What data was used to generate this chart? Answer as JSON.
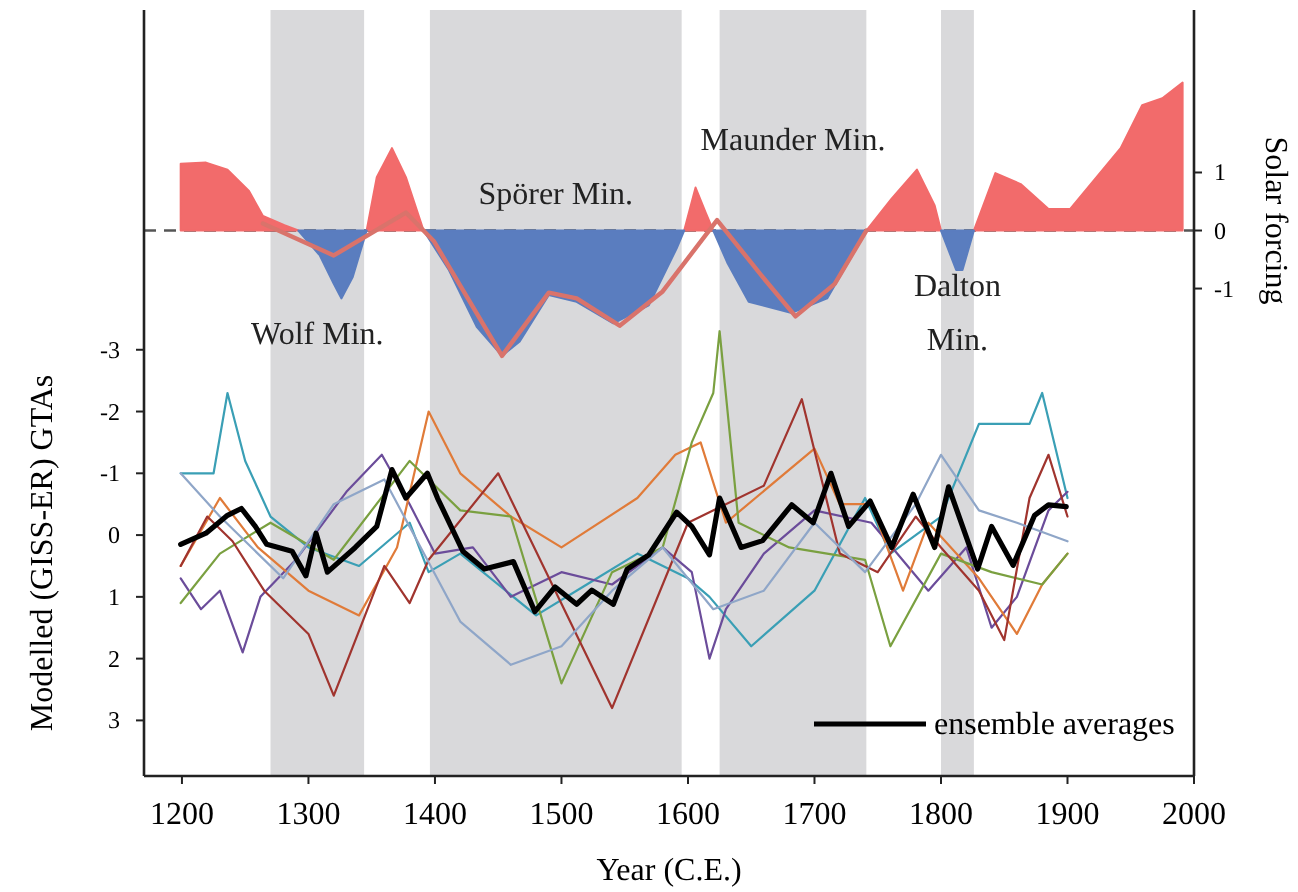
{
  "chart_data": {
    "type": "line",
    "xlabel": "Year (C.E.)",
    "ylabel": "Modelled (GISS-ER) GTAs",
    "y2label": "Solar forcing",
    "xlim": [
      1170,
      2000
    ],
    "xticks": [
      1200,
      1300,
      1400,
      1500,
      1600,
      1700,
      1800,
      1900,
      2000
    ],
    "ylim": [
      3.9,
      -8.5
    ],
    "yticks": [
      {
        "value": -3,
        "label": "-3"
      },
      {
        "value": -2,
        "label": "-2"
      },
      {
        "value": -1,
        "label": "-1"
      },
      0,
      1,
      2,
      3
    ],
    "y2lim": [
      -9.4,
      3.8
    ],
    "y2ticks": [
      {
        "value": -1,
        "label": "-1"
      },
      0,
      1
    ],
    "grid": false,
    "legend": "bottom right",
    "x": [
      1199,
      1219,
      1236,
      1253,
      1264,
      1281,
      1292,
      1309,
      1320,
      1326,
      1335,
      1346,
      1354,
      1366,
      1377,
      1391,
      1411,
      1433,
      1453,
      1467,
      1490,
      1512,
      1541,
      1569,
      1591,
      1597,
      1606,
      1614,
      1620,
      1631,
      1648,
      1682,
      1710,
      1733,
      1741,
      1761,
      1781,
      1795,
      1800,
      1812,
      1817,
      1826,
      1843,
      1863,
      1885,
      1902,
      1942,
      1959,
      1975,
      1991
    ],
    "series": [
      {
        "type": "line",
        "color": "#3a9fb5",
        "x": [
          1199,
          1225,
          1236,
          1250,
          1270,
          1300,
          1340,
          1380,
          1395,
          1420,
          1480,
          1520,
          1560,
          1600,
          1617,
          1650,
          1700,
          1740,
          1760,
          1800,
          1830,
          1870,
          1880,
          1900
        ],
        "values": [
          -1.0,
          -1.0,
          -2.3,
          -1.2,
          -0.3,
          0.2,
          0.5,
          -0.2,
          0.6,
          0.3,
          1.3,
          0.8,
          0.3,
          0.7,
          1.0,
          1.8,
          0.9,
          -0.6,
          0.3,
          -0.3,
          -1.8,
          -1.8,
          -2.3,
          -0.6
        ]
      },
      {
        "type": "line",
        "color": "#6b4c9a",
        "x": [
          1199,
          1215,
          1230,
          1248,
          1262,
          1290,
          1330,
          1358,
          1380,
          1400,
          1430,
          1460,
          1500,
          1540,
          1580,
          1603,
          1617,
          1630,
          1660,
          1700,
          1745,
          1790,
          1820,
          1840,
          1860,
          1885,
          1900
        ],
        "values": [
          0.7,
          1.2,
          0.9,
          1.9,
          1.0,
          0.4,
          -0.7,
          -1.3,
          -0.5,
          0.3,
          0.2,
          1.0,
          0.6,
          0.8,
          0.2,
          0.6,
          2.0,
          1.2,
          0.3,
          -0.4,
          -0.2,
          0.9,
          0.2,
          1.5,
          1.0,
          -0.4,
          -0.7
        ]
      },
      {
        "type": "line",
        "color": "#e07b39",
        "x": [
          1199,
          1230,
          1260,
          1300,
          1340,
          1370,
          1395,
          1420,
          1460,
          1500,
          1560,
          1590,
          1610,
          1630,
          1700,
          1720,
          1745,
          1770,
          1790,
          1830,
          1860,
          1880,
          1900
        ],
        "values": [
          0.5,
          -0.6,
          0.2,
          0.9,
          1.3,
          0.2,
          -2.0,
          -1.0,
          -0.3,
          0.2,
          -0.6,
          -1.3,
          -1.5,
          -0.2,
          -1.4,
          -0.5,
          -0.5,
          0.9,
          -0.2,
          0.7,
          1.6,
          0.8,
          0.3
        ]
      },
      {
        "type": "line",
        "color": "#7aa040",
        "x": [
          1199,
          1230,
          1270,
          1320,
          1380,
          1420,
          1460,
          1500,
          1540,
          1580,
          1603,
          1620,
          1625,
          1640,
          1680,
          1740,
          1760,
          1800,
          1840,
          1880,
          1900
        ],
        "values": [
          1.1,
          0.3,
          -0.2,
          0.4,
          -1.2,
          -0.4,
          -0.3,
          2.4,
          0.6,
          0.2,
          -1.5,
          -2.3,
          -3.3,
          -0.2,
          0.2,
          0.4,
          1.8,
          0.3,
          0.6,
          0.8,
          0.3
        ]
      },
      {
        "type": "line",
        "color": "#a0342e",
        "x": [
          1199,
          1220,
          1240,
          1265,
          1300,
          1320,
          1360,
          1380,
          1395,
          1450,
          1540,
          1600,
          1660,
          1690,
          1720,
          1750,
          1780,
          1800,
          1830,
          1850,
          1870,
          1885,
          1900
        ],
        "values": [
          0.5,
          -0.3,
          0.1,
          0.9,
          1.6,
          2.6,
          0.5,
          1.1,
          0.4,
          -1.0,
          2.8,
          -0.2,
          -0.8,
          -2.2,
          0.3,
          0.6,
          -0.3,
          0.2,
          0.9,
          1.7,
          -0.6,
          -1.3,
          -0.3
        ]
      },
      {
        "type": "line",
        "color": "#8fa6c8",
        "x": [
          1199,
          1230,
          1280,
          1320,
          1360,
          1420,
          1460,
          1500,
          1540,
          1580,
          1620,
          1660,
          1700,
          1740,
          1780,
          1800,
          1830,
          1860,
          1900
        ],
        "values": [
          -1.0,
          -0.3,
          0.7,
          -0.5,
          -0.9,
          1.4,
          2.1,
          1.8,
          0.9,
          0.2,
          1.2,
          0.9,
          -0.2,
          0.6,
          -0.5,
          -1.3,
          -0.4,
          -0.2,
          0.1
        ]
      },
      {
        "type": "line",
        "name": "ensemble averages",
        "color": "#000000",
        "x": [
          1199,
          1219,
          1236,
          1247,
          1258,
          1267,
          1287,
          1298,
          1306,
          1315,
          1337,
          1354,
          1366,
          1377,
          1394,
          1402,
          1422,
          1439,
          1462,
          1479,
          1495,
          1512,
          1524,
          1541,
          1552,
          1569,
          1591,
          1603,
          1617,
          1625,
          1642,
          1659,
          1682,
          1699,
          1713,
          1727,
          1744,
          1761,
          1778,
          1795,
          1806,
          1829,
          1840,
          1857,
          1874,
          1885,
          1899
        ],
        "values": [
          0.15,
          -0.03,
          -0.32,
          -0.43,
          -0.14,
          0.15,
          0.26,
          0.66,
          -0.03,
          0.6,
          0.2,
          -0.14,
          -1.06,
          -0.6,
          -1.0,
          -0.6,
          0.26,
          0.55,
          0.43,
          1.24,
          0.84,
          1.12,
          0.89,
          1.12,
          0.55,
          0.32,
          -0.37,
          -0.14,
          0.32,
          -0.6,
          0.2,
          0.09,
          -0.49,
          -0.2,
          -1.0,
          -0.14,
          -0.55,
          0.2,
          -0.66,
          0.2,
          -0.78,
          0.55,
          -0.14,
          0.49,
          -0.32,
          -0.49,
          -0.46
        ]
      },
      {
        "type": "area",
        "axis": "y2",
        "color": "#f26b6b",
        "values": [
          1.15,
          1.17,
          1.05,
          0.68,
          0.25,
          0.09,
          0,
          null,
          null,
          null,
          null,
          0,
          0.92,
          1.42,
          0.92,
          0,
          null,
          null,
          null,
          null,
          null,
          null,
          null,
          null,
          null,
          0,
          0.74,
          0.31,
          0,
          null,
          null,
          null,
          null,
          null,
          0,
          0.55,
          1.05,
          0.43,
          0,
          null,
          null,
          0,
          0.99,
          0.8,
          0.37,
          0.37,
          1.42,
          2.16,
          2.28,
          2.55
        ]
      },
      {
        "type": "area",
        "axis": "y2",
        "color": "#5a7dbf",
        "values": [
          null,
          null,
          null,
          null,
          null,
          null,
          0,
          -0.43,
          -0.92,
          -1.17,
          -0.8,
          0,
          null,
          null,
          null,
          0,
          -0.68,
          -1.66,
          -2.16,
          -1.91,
          -1.11,
          -1.23,
          -1.6,
          -1.29,
          -0.31,
          0,
          null,
          null,
          0,
          -0.55,
          -1.23,
          -1.42,
          -1.17,
          -0.31,
          0,
          null,
          null,
          null,
          0,
          -0.68,
          -0.68,
          0,
          null,
          null,
          null,
          null,
          null,
          null,
          null,
          null
        ]
      },
      {
        "type": "line",
        "axis": "y2",
        "color": "#d9736b",
        "x": [
          1264,
          1320,
          1377,
          1399,
          1453,
          1490,
          1512,
          1546,
          1580,
          1623,
          1659,
          1685,
          1716,
          1741
        ],
        "values": [
          0.12,
          -0.43,
          0.31,
          -0.18,
          -2.16,
          -1.07,
          -1.17,
          -1.64,
          -1.05,
          0.18,
          -0.8,
          -1.48,
          -0.92,
          0
        ]
      }
    ],
    "bands": [
      {
        "axis": "x",
        "from": 1270,
        "to": 1344,
        "label": "Wolf Min.",
        "color": "#d9d9db"
      },
      {
        "axis": "x",
        "from": 1396,
        "to": 1595,
        "label": "Spörer Min.",
        "color": "#d9d9db"
      },
      {
        "axis": "x",
        "from": 1625,
        "to": 1741,
        "label": "Maunder Min.",
        "color": "#d9d9db"
      },
      {
        "axis": "x",
        "from": 1800,
        "to": 1826,
        "label": "Dalton Min.",
        "color": "#d9d9db"
      }
    ],
    "ref_lines": [
      {
        "axis": "y2",
        "value": 0,
        "color": "#555555",
        "line_style": "dashed"
      }
    ]
  }
}
